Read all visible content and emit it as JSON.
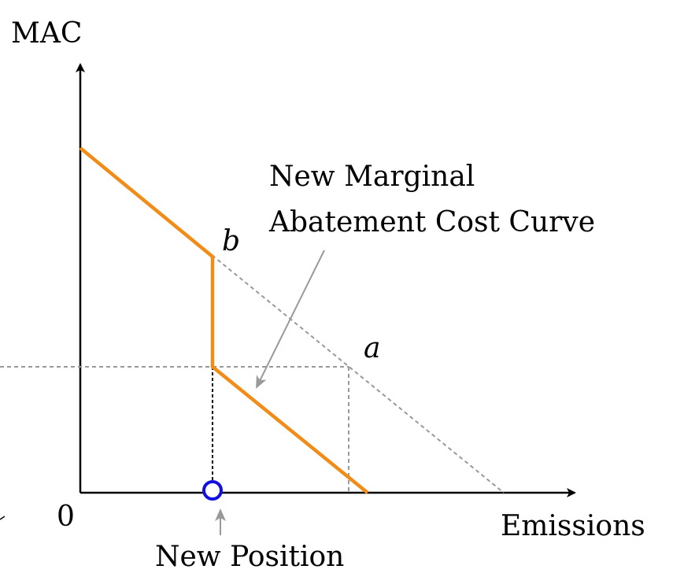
{
  "diagram": {
    "y_axis_label": "MAC",
    "x_axis_label": "Emissions",
    "origin_label": "0",
    "point_a_label": "a",
    "point_b_label": "b",
    "annotation_line1": "New Marginal",
    "annotation_line2": "Abatement Cost Curve",
    "position_label": "New Position",
    "colors": {
      "axis": "#000000",
      "original_curve_dashed": "#999999",
      "new_curve": "#f28c18",
      "guide_lines": "#999999",
      "drop_line": "#000000",
      "annotation_arrow": "#999999",
      "new_position_marker": "#1010e0"
    }
  }
}
